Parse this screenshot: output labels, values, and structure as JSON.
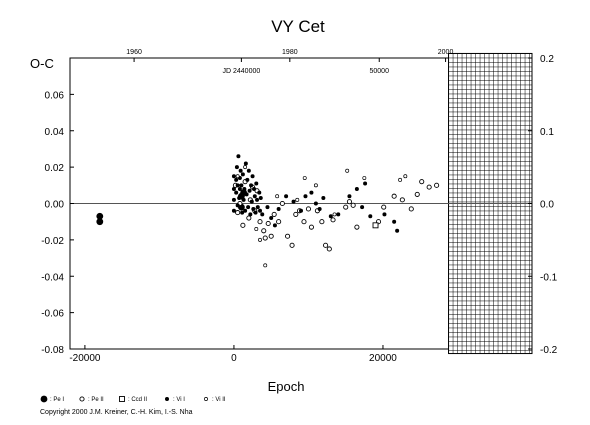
{
  "chart_data": {
    "type": "scatter",
    "title": "VY  Cet",
    "xlabel": "Epoch",
    "ylabel": "O-C",
    "x_range": [
      -22000,
      40000
    ],
    "y_range": [
      -0.08,
      0.08
    ],
    "x_ticks": [
      {
        "value": -20000,
        "label": "-20000"
      },
      {
        "value": 0,
        "label": "0"
      },
      {
        "value": 20000,
        "label": "20000"
      }
    ],
    "y_ticks": [
      {
        "value": -0.08,
        "label": "-0.08"
      },
      {
        "value": -0.06,
        "label": "-0.06"
      },
      {
        "value": -0.04,
        "label": "-0.04"
      },
      {
        "value": -0.02,
        "label": "-0.02"
      },
      {
        "value": 0.0,
        "label": "0.00"
      },
      {
        "value": 0.02,
        "label": "0.02"
      },
      {
        "value": 0.04,
        "label": "0.04"
      },
      {
        "value": 0.06,
        "label": "0.06"
      }
    ],
    "right_ticks": [
      {
        "value": -0.2,
        "label": "-0.2"
      },
      {
        "value": -0.1,
        "label": "-0.1"
      },
      {
        "value": 0.0,
        "label": "0.0"
      },
      {
        "value": 0.1,
        "label": "0.1"
      },
      {
        "value": 0.2,
        "label": "0.2"
      }
    ],
    "top_ticks": [
      {
        "value": -13400,
        "label": "1960"
      },
      {
        "value": 7500,
        "label": "1980"
      },
      {
        "value": 28400,
        "label": "2000"
      }
    ],
    "top_annotations": [
      {
        "value": 1000,
        "label": "JD 2440000"
      },
      {
        "value": 19500,
        "label": "50000"
      }
    ],
    "hatched_region": {
      "x_from": 28800,
      "x_to": 40000,
      "y_from": -0.0825,
      "y_to": 0.0825
    },
    "series": [
      {
        "marker": "pe-i",
        "points": [
          [
            -18000,
            -0.007
          ],
          [
            -18000,
            -0.01
          ],
          [
            1000,
            0.004
          ],
          [
            1000,
            -0.002
          ],
          [
            1300,
            0.006
          ]
        ]
      },
      {
        "marker": "pe-ii",
        "points": [
          [
            200,
            0.01
          ],
          [
            500,
            -0.005
          ],
          [
            800,
            0.0
          ],
          [
            1200,
            -0.012
          ],
          [
            1500,
            0.012
          ],
          [
            2000,
            -0.008
          ],
          [
            2200,
            0.002
          ],
          [
            2500,
            0.009
          ],
          [
            2800,
            -0.004
          ],
          [
            3100,
            0.007
          ],
          [
            3500,
            -0.01
          ],
          [
            4000,
            -0.015
          ],
          [
            4200,
            -0.019
          ],
          [
            4600,
            -0.011
          ],
          [
            5000,
            -0.018
          ],
          [
            5400,
            -0.006
          ],
          [
            6000,
            -0.01
          ],
          [
            6500,
            0.0
          ],
          [
            7200,
            -0.018
          ],
          [
            7800,
            -0.023
          ],
          [
            8300,
            -0.006
          ],
          [
            8800,
            -0.004
          ],
          [
            9400,
            -0.01
          ],
          [
            10000,
            -0.003
          ],
          [
            10400,
            -0.013
          ],
          [
            11200,
            -0.004
          ],
          [
            11800,
            -0.01
          ],
          [
            12300,
            -0.023
          ],
          [
            12800,
            -0.025
          ],
          [
            13300,
            -0.009
          ],
          [
            15000,
            -0.002
          ],
          [
            15500,
            0.001
          ],
          [
            16000,
            -0.001
          ],
          [
            16500,
            -0.013
          ],
          [
            19400,
            -0.01
          ],
          [
            20100,
            -0.002
          ],
          [
            21500,
            0.004
          ],
          [
            22600,
            0.002
          ],
          [
            23800,
            -0.003
          ],
          [
            24600,
            0.005
          ],
          [
            25200,
            0.012
          ],
          [
            26200,
            0.009
          ],
          [
            27200,
            0.01
          ]
        ]
      },
      {
        "marker": "ccd-ii",
        "points": [
          [
            19000,
            -0.012
          ]
        ]
      },
      {
        "marker": "vi-i",
        "points": [
          [
            0,
            0.015
          ],
          [
            0,
            0.008
          ],
          [
            0,
            0.002
          ],
          [
            0,
            -0.004
          ],
          [
            300,
            0.013
          ],
          [
            300,
            0.006
          ],
          [
            400,
            0.02
          ],
          [
            500,
            0.01
          ],
          [
            500,
            -0.001
          ],
          [
            600,
            0.026
          ],
          [
            700,
            0.003
          ],
          [
            800,
            0.014
          ],
          [
            800,
            0.008
          ],
          [
            900,
            0.018
          ],
          [
            1000,
            0.01
          ],
          [
            1100,
            -0.005
          ],
          [
            1200,
            0.016
          ],
          [
            1300,
            0.002
          ],
          [
            1400,
            0.008
          ],
          [
            1500,
            -0.004
          ],
          [
            1600,
            0.022
          ],
          [
            1700,
            0.005
          ],
          [
            1800,
            0.013
          ],
          [
            1900,
            -0.002
          ],
          [
            2000,
            0.018
          ],
          [
            2100,
            0.007
          ],
          [
            2200,
            -0.006
          ],
          [
            2300,
            0.01
          ],
          [
            2400,
            0.001
          ],
          [
            2500,
            0.015
          ],
          [
            2600,
            -0.003
          ],
          [
            2700,
            0.008
          ],
          [
            2800,
            0.004
          ],
          [
            2900,
            -0.005
          ],
          [
            3000,
            0.011
          ],
          [
            3100,
            0.002
          ],
          [
            3200,
            -0.002
          ],
          [
            3400,
            0.006
          ],
          [
            3500,
            -0.004
          ],
          [
            3600,
            0.003
          ],
          [
            3800,
            -0.006
          ],
          [
            4500,
            -0.002
          ],
          [
            5000,
            -0.008
          ],
          [
            5500,
            -0.012
          ],
          [
            6000,
            -0.003
          ],
          [
            7000,
            0.004
          ],
          [
            8000,
            0.001
          ],
          [
            9000,
            -0.004
          ],
          [
            9600,
            0.004
          ],
          [
            10400,
            0.006
          ],
          [
            11000,
            0.0
          ],
          [
            11500,
            -0.003
          ],
          [
            12000,
            0.003
          ],
          [
            13000,
            -0.007
          ],
          [
            14000,
            -0.006
          ],
          [
            15500,
            0.004
          ],
          [
            16500,
            0.008
          ],
          [
            17200,
            -0.002
          ],
          [
            17600,
            0.011
          ],
          [
            18300,
            -0.007
          ],
          [
            20200,
            -0.006
          ],
          [
            21500,
            -0.01
          ],
          [
            21900,
            -0.015
          ]
        ]
      },
      {
        "marker": "vi-ii",
        "points": [
          [
            500,
            0.015
          ],
          [
            1500,
            0.02
          ],
          [
            3000,
            -0.014
          ],
          [
            3500,
            -0.02
          ],
          [
            4200,
            -0.034
          ],
          [
            5800,
            0.004
          ],
          [
            8500,
            0.002
          ],
          [
            9500,
            0.014
          ],
          [
            11000,
            0.01
          ],
          [
            13500,
            -0.006
          ],
          [
            15200,
            0.018
          ],
          [
            17500,
            0.014
          ],
          [
            22300,
            0.013
          ],
          [
            23000,
            0.015
          ]
        ]
      }
    ]
  },
  "legend": [
    {
      "marker": "pe-i",
      "label": ": Pe I"
    },
    {
      "marker": "pe-ii",
      "label": ": Pe II"
    },
    {
      "marker": "ccd-ii",
      "label": ": Ccd II"
    },
    {
      "marker": "vi-i",
      "label": ": Vi I"
    },
    {
      "marker": "vi-ii",
      "label": ": Vi II"
    }
  ],
  "copyright": "Copyright 2000 J.M. Kreiner, C.-H. Kim, I.-S. Nha"
}
